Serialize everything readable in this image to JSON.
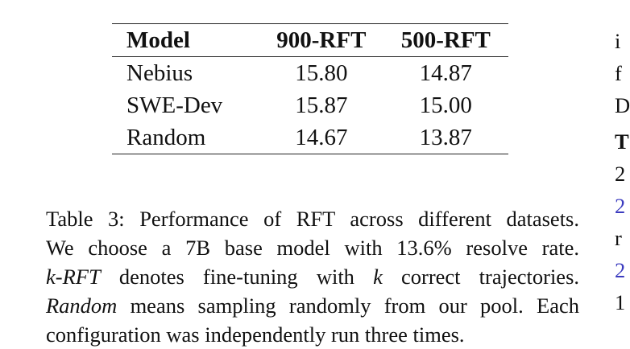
{
  "table": {
    "headers": [
      "Model",
      "900-RFT",
      "500-RFT"
    ],
    "rows": [
      [
        "Nebius",
        "15.80",
        "14.87"
      ],
      [
        "SWE-Dev",
        "15.87",
        "15.00"
      ],
      [
        "Random",
        "14.67",
        "13.87"
      ]
    ]
  },
  "caption": {
    "line1": "Table 3: Performance of RFT across different datasets.",
    "line2": "We choose a 7B base model with 13.6% resolve rate.",
    "line3_em": "k-RFT",
    "line3_rest_a": " denotes fine-tuning with ",
    "line3_k": "k",
    "line3_rest_b": " correct trajectories.",
    "line4_em": "Random",
    "line4_rest": " means sampling randomly from our pool. Each",
    "line5": "configuration was independently run three times."
  },
  "right_column_fragments": [
    "i",
    "f",
    "D",
    "T",
    "2",
    "2",
    "r",
    "2",
    "1"
  ]
}
